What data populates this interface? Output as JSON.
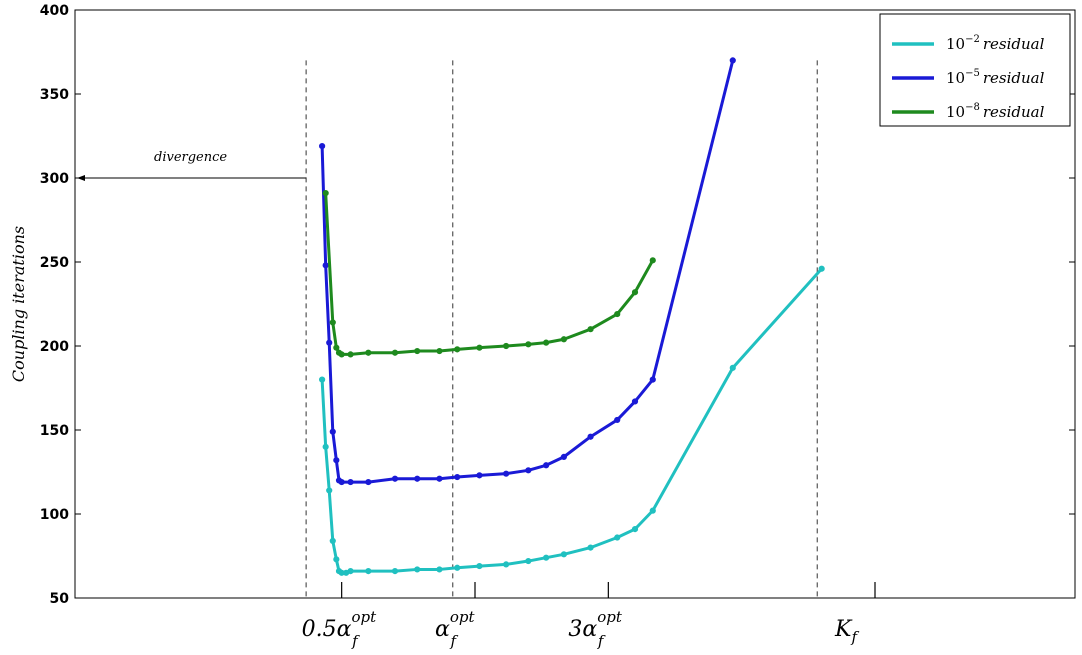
{
  "chart_data": {
    "type": "line",
    "ylabel": "Coupling iterations",
    "xlabel": "",
    "ylim": [
      50,
      400
    ],
    "xlim": [
      0,
      11.25
    ],
    "yticks": [
      50,
      100,
      150,
      200,
      250,
      300,
      350,
      400
    ],
    "xticks": [
      {
        "x": 3.0,
        "base": "0.5α",
        "sup": "opt",
        "sub": "f"
      },
      {
        "x": 4.5,
        "base": "α",
        "sup": "opt",
        "sub": "f"
      },
      {
        "x": 6.0,
        "base": "3α",
        "sup": "opt",
        "sub": "f"
      },
      {
        "x": 9.0,
        "base": "K",
        "sup": "",
        "sub": "f"
      }
    ],
    "vlines": [
      2.6,
      4.25,
      8.35
    ],
    "legend_position": "top-right",
    "annotation": {
      "text": "divergence",
      "y": 300
    },
    "series": [
      {
        "name_prefix": "10",
        "name_exp": "−2",
        "name_suffix": "residual",
        "color": "#20c0c0",
        "x": [
          2.78,
          2.82,
          2.86,
          2.9,
          2.94,
          2.97,
          3.0,
          3.05,
          3.1,
          3.3,
          3.6,
          3.85,
          4.1,
          4.3,
          4.55,
          4.85,
          5.1,
          5.3,
          5.5,
          5.8,
          6.1,
          6.3,
          6.5,
          7.4,
          8.4
        ],
        "y": [
          180,
          140,
          114,
          84,
          73,
          66,
          65,
          65,
          66,
          66,
          66,
          67,
          67,
          68,
          69,
          70,
          72,
          74,
          76,
          80,
          86,
          91,
          102,
          187,
          246
        ]
      },
      {
        "name_prefix": "10",
        "name_exp": "−5",
        "name_suffix": "residual",
        "color": "#1a1ad6",
        "x": [
          2.78,
          2.82,
          2.86,
          2.9,
          2.94,
          2.97,
          3.0,
          3.1,
          3.3,
          3.6,
          3.85,
          4.1,
          4.3,
          4.55,
          4.85,
          5.1,
          5.3,
          5.5,
          5.8,
          6.1,
          6.3,
          6.5,
          7.4
        ],
        "y": [
          319,
          248,
          202,
          149,
          132,
          120,
          119,
          119,
          119,
          121,
          121,
          121,
          122,
          123,
          124,
          126,
          129,
          134,
          146,
          156,
          167,
          180,
          370
        ]
      },
      {
        "name_prefix": "10",
        "name_exp": "−8",
        "name_suffix": "residual",
        "color": "#1e8a1e",
        "x": [
          2.82,
          2.9,
          2.94,
          2.97,
          3.0,
          3.1,
          3.3,
          3.6,
          3.85,
          4.1,
          4.3,
          4.55,
          4.85,
          5.1,
          5.3,
          5.5,
          5.8,
          6.1,
          6.3,
          6.5
        ],
        "y": [
          291,
          214,
          199,
          196,
          195,
          195,
          196,
          196,
          197,
          197,
          198,
          199,
          200,
          201,
          202,
          204,
          210,
          219,
          232,
          251
        ]
      }
    ]
  }
}
